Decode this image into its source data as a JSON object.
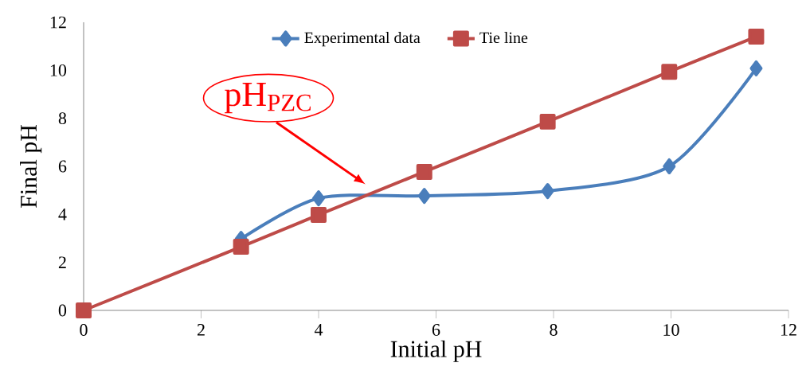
{
  "chart_data": {
    "type": "line",
    "xlabel": "Initial pH",
    "ylabel": "Final pH",
    "xlim": [
      0,
      12
    ],
    "ylim": [
      0,
      12
    ],
    "xticks": [
      0,
      2,
      4,
      6,
      8,
      10,
      12
    ],
    "yticks": [
      0,
      2,
      4,
      6,
      8,
      10,
      12
    ],
    "grid": false,
    "legend": "top",
    "series": [
      {
        "name": "Experimental data",
        "color": "#4a7ebb",
        "marker": "diamond",
        "x": [
          2.68,
          4.0,
          5.8,
          7.9,
          9.97,
          11.45
        ],
        "values": [
          2.98,
          4.67,
          4.77,
          4.97,
          6.0,
          10.08
        ]
      },
      {
        "name": "Tie line",
        "color": "#be4b48",
        "marker": "square",
        "x": [
          0,
          2.68,
          4.0,
          5.8,
          7.9,
          9.97,
          11.45
        ],
        "values": [
          0,
          2.65,
          3.98,
          5.77,
          7.86,
          9.94,
          11.4
        ]
      }
    ],
    "annotations": [
      {
        "text": "pH$_{PZC}$",
        "x": 4.8,
        "y": 4.8
      }
    ]
  }
}
